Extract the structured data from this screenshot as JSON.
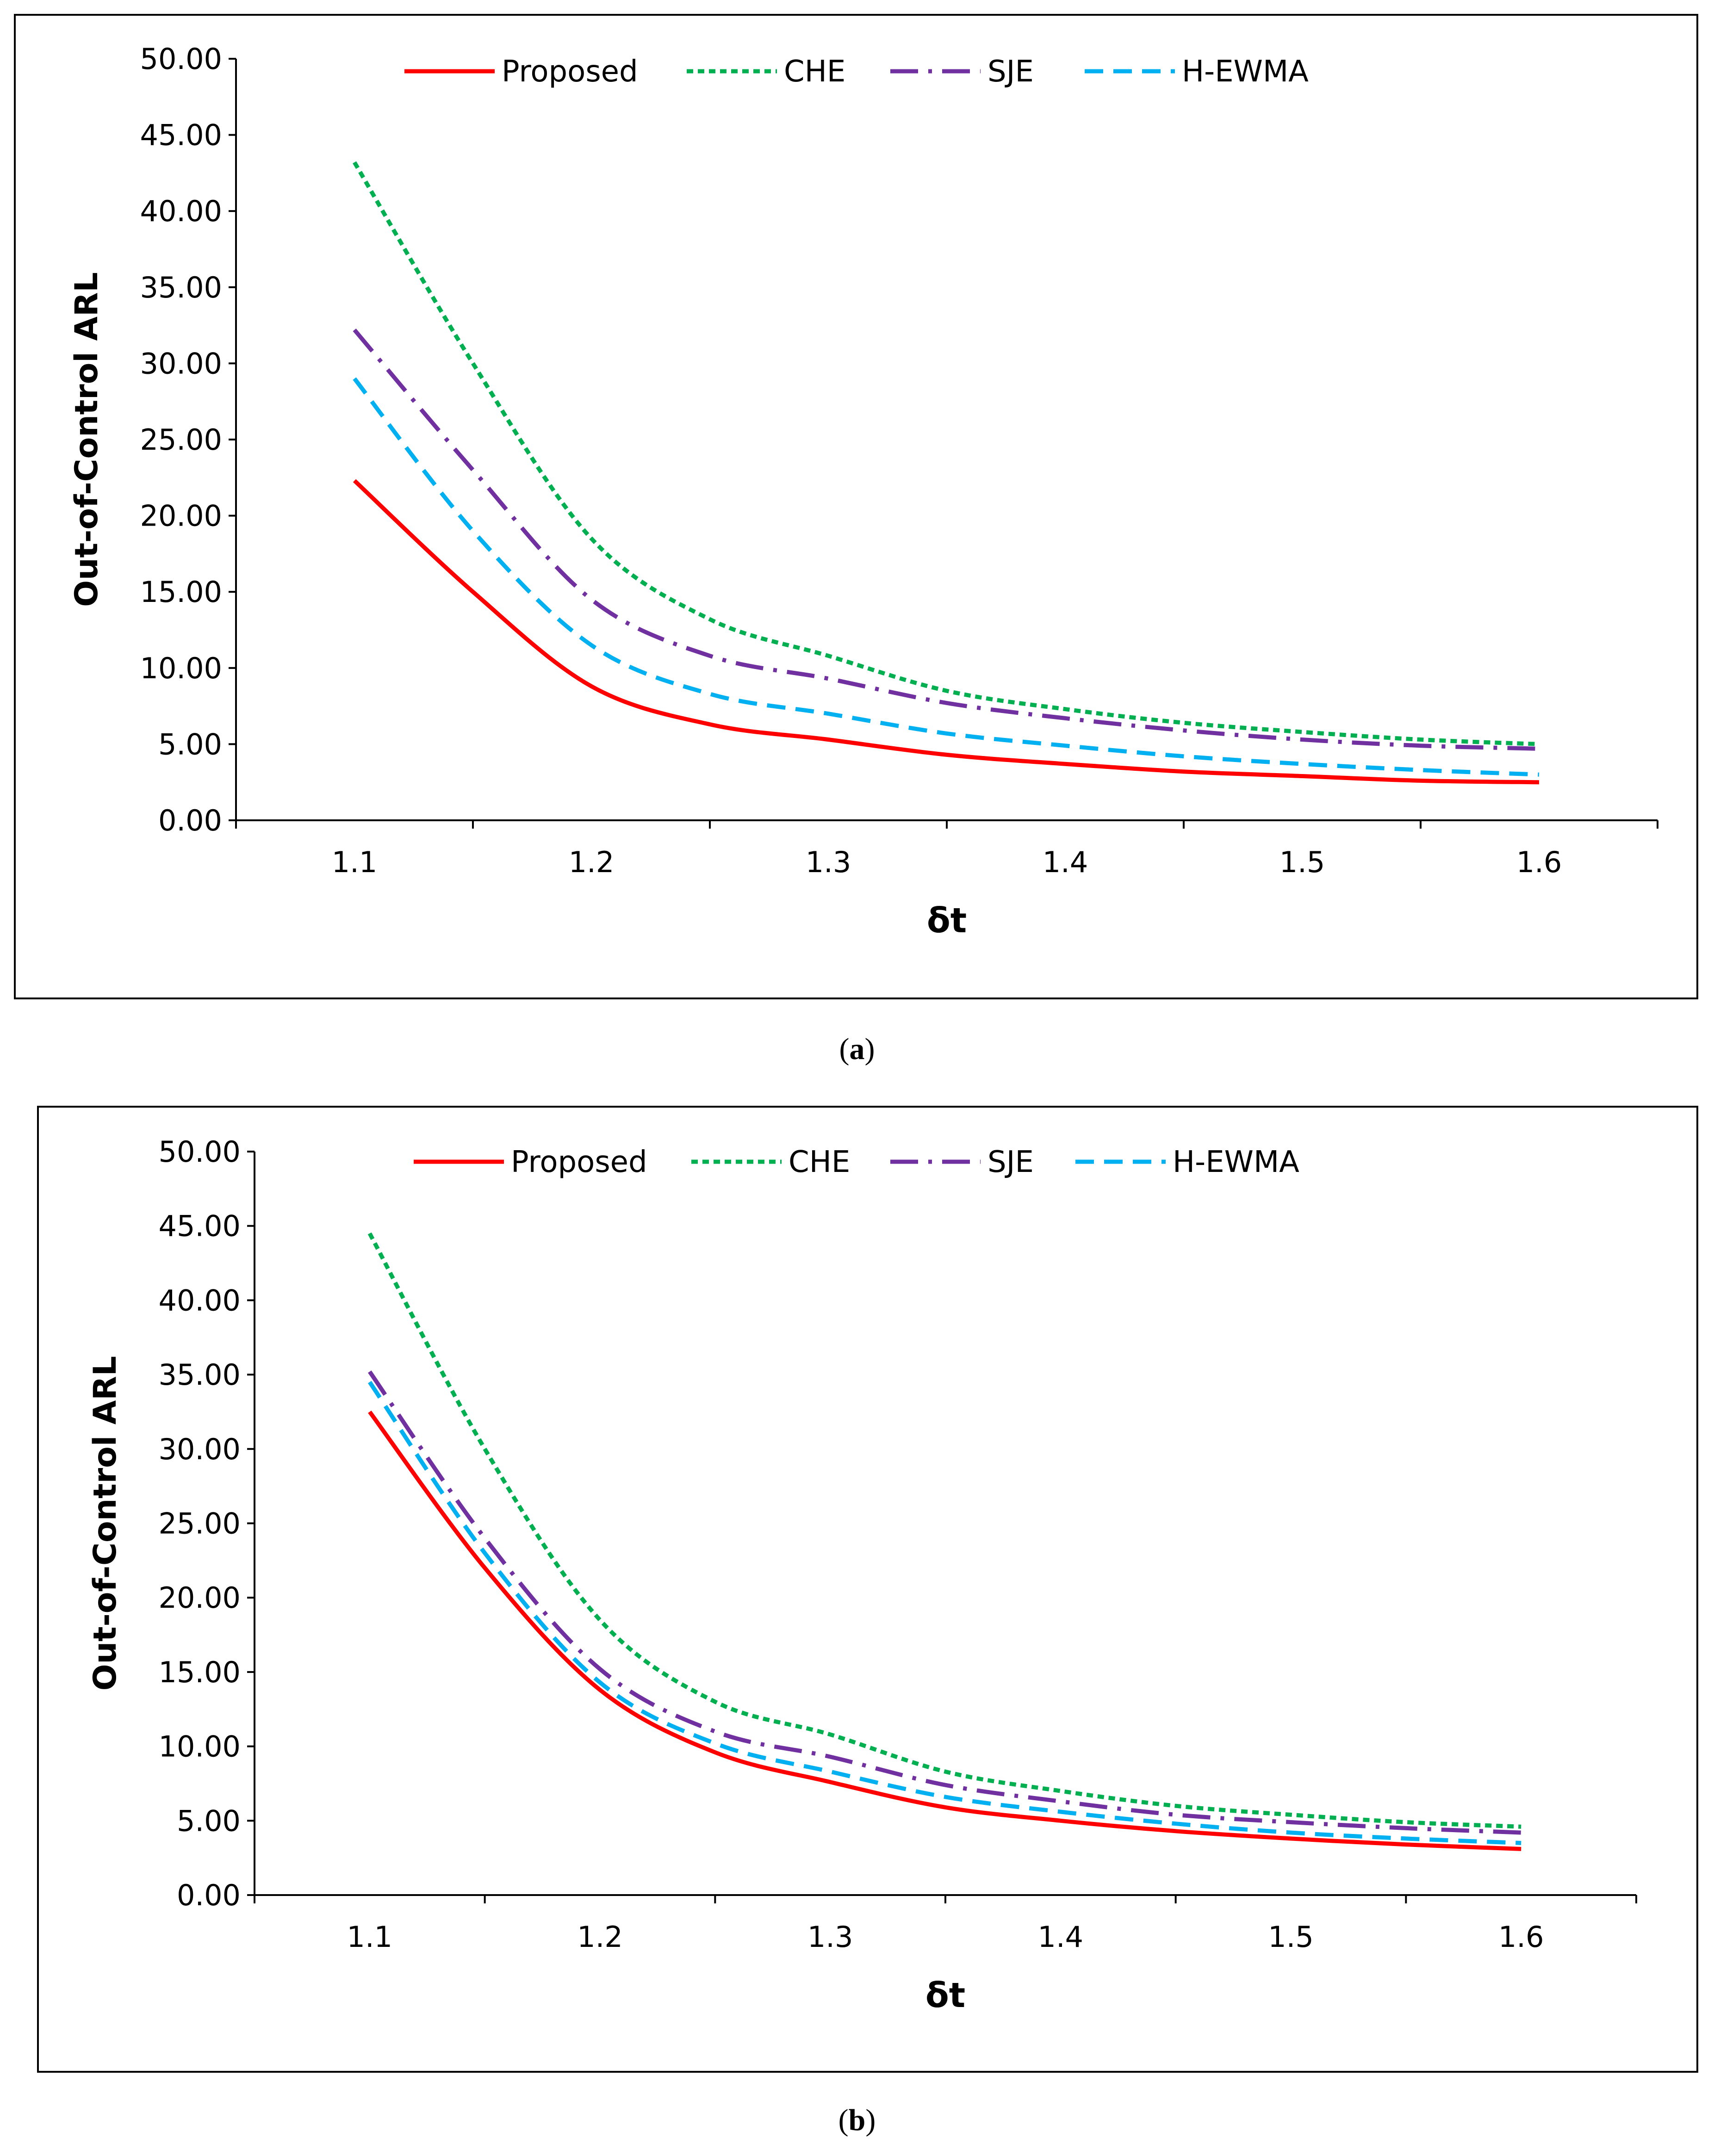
{
  "chart_data": [
    {
      "type": "line",
      "panel": "a",
      "xlabel": "δt",
      "ylabel": "Out-of-Control ARL",
      "ylim": [
        0,
        50
      ],
      "xlim": [
        1.05,
        1.65
      ],
      "x": [
        1.1,
        1.15,
        1.2,
        1.25,
        1.3,
        1.35,
        1.4,
        1.45,
        1.5,
        1.55,
        1.6
      ],
      "xticks": [
        "1.1",
        "1.2",
        "1.3",
        "1.4",
        "1.5",
        "1.6"
      ],
      "yticks": [
        "0.00",
        "5.00",
        "10.00",
        "15.00",
        "20.00",
        "25.00",
        "30.00",
        "35.00",
        "40.00",
        "45.00",
        "50.00"
      ],
      "series": [
        {
          "name": "Proposed",
          "color": "#ff0000",
          "dash": "solid",
          "values": [
            22.3,
            15.0,
            8.8,
            6.3,
            5.3,
            4.3,
            3.7,
            3.2,
            2.9,
            2.6,
            2.5
          ]
        },
        {
          "name": "CHE",
          "color": "#00b050",
          "dash": "dot",
          "values": [
            43.2,
            30.0,
            18.5,
            13.2,
            10.8,
            8.5,
            7.3,
            6.4,
            5.8,
            5.3,
            5.0
          ]
        },
        {
          "name": "SJE",
          "color": "#7030a0",
          "dash": "dashdot",
          "values": [
            32.2,
            23.0,
            14.5,
            10.8,
            9.3,
            7.7,
            6.7,
            5.9,
            5.3,
            4.9,
            4.7
          ]
        },
        {
          "name": "H-EWMA",
          "color": "#00b0f0",
          "dash": "dash",
          "values": [
            29.0,
            19.0,
            11.5,
            8.3,
            7.0,
            5.7,
            4.9,
            4.2,
            3.7,
            3.3,
            3.0
          ]
        }
      ]
    },
    {
      "type": "line",
      "panel": "b",
      "xlabel": "δt",
      "ylabel": "Out-of-Control ARL",
      "ylim": [
        0,
        50
      ],
      "xlim": [
        1.05,
        1.65
      ],
      "x": [
        1.1,
        1.15,
        1.2,
        1.25,
        1.3,
        1.35,
        1.4,
        1.45,
        1.5,
        1.55,
        1.6
      ],
      "xticks": [
        "1.1",
        "1.2",
        "1.3",
        "1.4",
        "1.5",
        "1.6"
      ],
      "yticks": [
        "0.00",
        "5.00",
        "10.00",
        "15.00",
        "20.00",
        "25.00",
        "30.00",
        "35.00",
        "40.00",
        "45.00",
        "50.00"
      ],
      "series": [
        {
          "name": "Proposed",
          "color": "#ff0000",
          "dash": "solid",
          "values": [
            32.5,
            22.0,
            13.8,
            9.6,
            7.6,
            5.9,
            5.0,
            4.3,
            3.8,
            3.4,
            3.1
          ]
        },
        {
          "name": "CHE",
          "color": "#00b050",
          "dash": "dot",
          "values": [
            44.5,
            30.0,
            18.5,
            13.0,
            10.8,
            8.3,
            7.0,
            6.0,
            5.4,
            4.9,
            4.6
          ]
        },
        {
          "name": "SJE",
          "color": "#7030a0",
          "dash": "dashdot",
          "values": [
            35.2,
            24.0,
            15.2,
            11.0,
            9.3,
            7.4,
            6.3,
            5.4,
            4.9,
            4.5,
            4.2
          ]
        },
        {
          "name": "H-EWMA",
          "color": "#00b0f0",
          "dash": "dash",
          "values": [
            34.5,
            23.0,
            14.3,
            10.2,
            8.3,
            6.6,
            5.6,
            4.8,
            4.2,
            3.8,
            3.5
          ]
        }
      ]
    }
  ],
  "captions": [
    "a",
    "b"
  ]
}
